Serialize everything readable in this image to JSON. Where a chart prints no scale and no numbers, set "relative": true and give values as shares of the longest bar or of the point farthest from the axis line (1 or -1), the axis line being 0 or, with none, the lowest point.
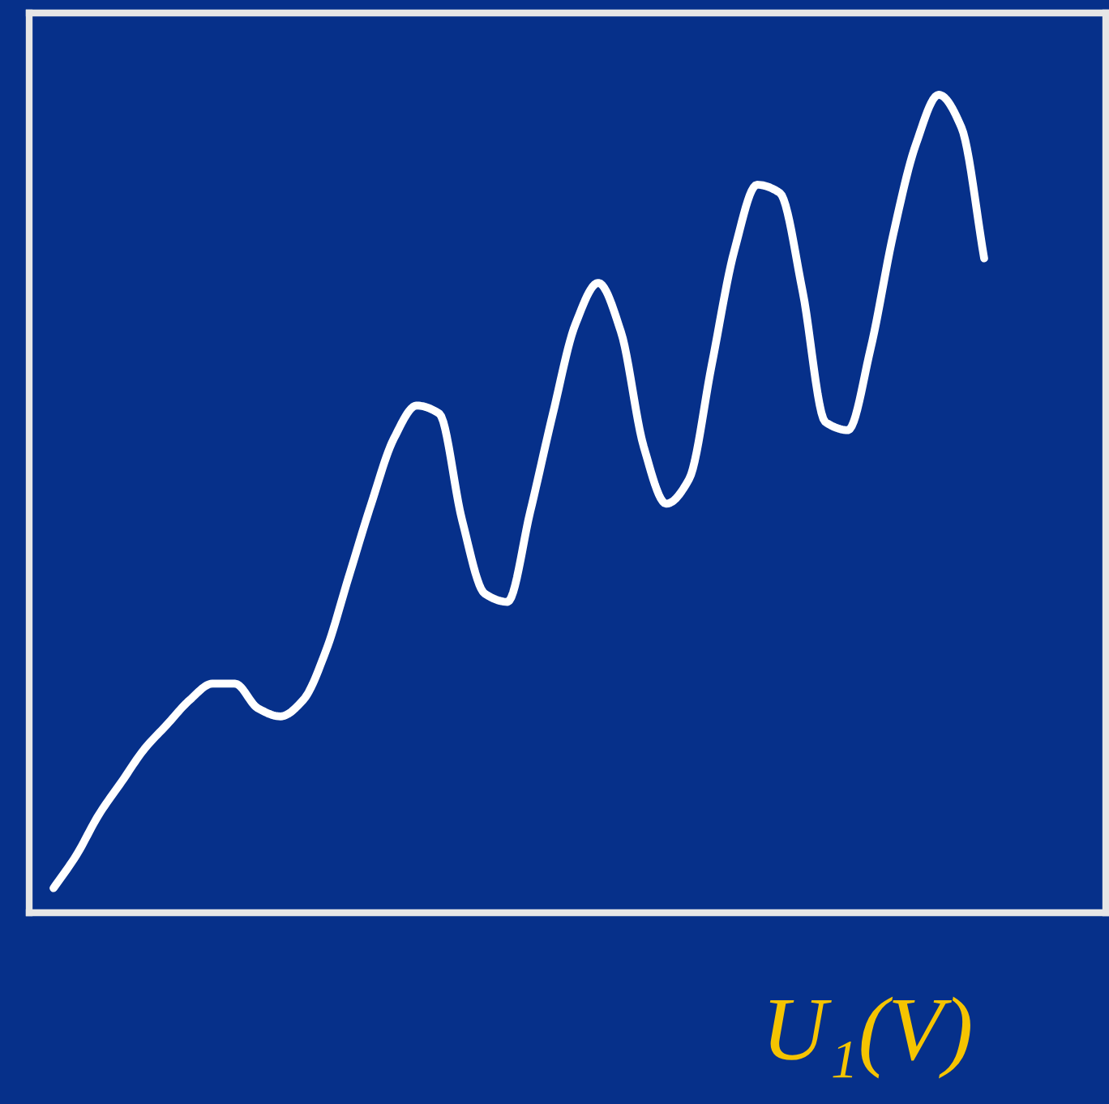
{
  "chart_data": {
    "type": "line",
    "relative": true,
    "xlabel": "U₁(V)",
    "categories": [
      null,
      null,
      null,
      null,
      null,
      null,
      null,
      null,
      null,
      null,
      null,
      null,
      null,
      null,
      null,
      null,
      null,
      null,
      null,
      null,
      null,
      null,
      null,
      null,
      null,
      null,
      null,
      null,
      null,
      null,
      null,
      null,
      null,
      null,
      null,
      null,
      null,
      null,
      null,
      null,
      null,
      null
    ],
    "series": [
      {
        "color": "#ffffff",
        "values": [
          0.03,
          0.07,
          0.12,
          0.16,
          0.2,
          0.23,
          0.26,
          0.28,
          0.28,
          0.25,
          0.24,
          0.26,
          0.32,
          0.41,
          0.5,
          0.58,
          0.62,
          0.61,
          0.48,
          0.39,
          0.38,
          0.49,
          0.61,
          0.72,
          0.77,
          0.71,
          0.57,
          0.5,
          0.53,
          0.67,
          0.81,
          0.89,
          0.88,
          0.76,
          0.6,
          0.59,
          0.69,
          0.83,
          0.94,
          1,
          0.96,
          0.8
        ]
      }
    ],
    "marker": "none",
    "line_style": "solid"
  }
}
